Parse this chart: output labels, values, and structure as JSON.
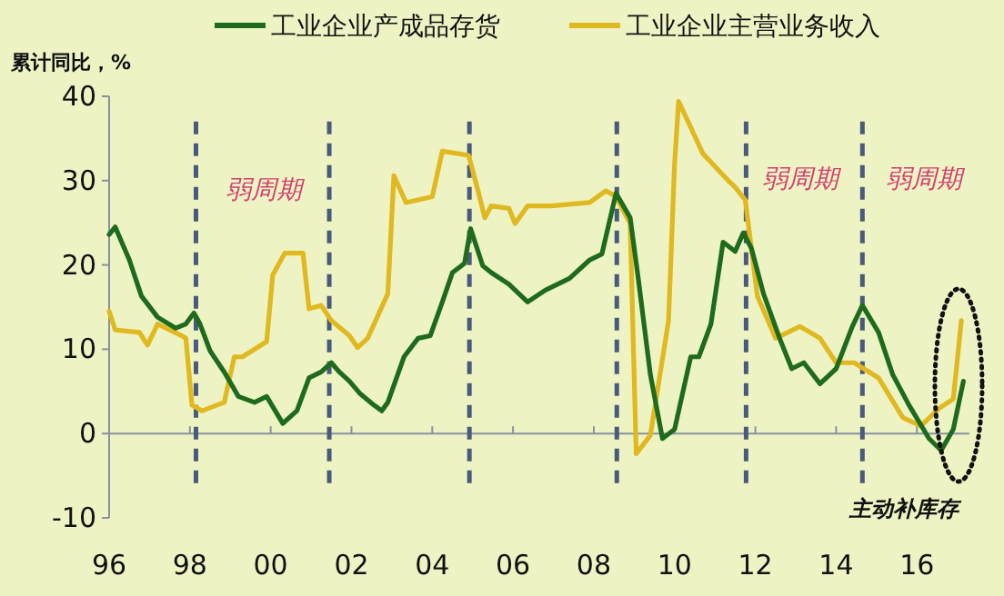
{
  "chart_data": {
    "type": "line",
    "ylabel": "累计同比，%",
    "legend": "top",
    "marker": "none",
    "line_style": "solid",
    "xlim": [
      1996,
      2017.3
    ],
    "ylim": [
      -10,
      40
    ],
    "yticks": [
      -10,
      0,
      10,
      20,
      30,
      40
    ],
    "xticks": [
      {
        "value": 1996,
        "label": "96"
      },
      {
        "value": 1998,
        "label": "98"
      },
      {
        "value": 2000,
        "label": "00"
      },
      {
        "value": 2002,
        "label": "02"
      },
      {
        "value": 2004,
        "label": "04"
      },
      {
        "value": 2006,
        "label": "06"
      },
      {
        "value": 2008,
        "label": "08"
      },
      {
        "value": 2010,
        "label": "10"
      },
      {
        "value": 2012,
        "label": "12"
      },
      {
        "value": 2014,
        "label": "14"
      },
      {
        "value": 2016,
        "label": "16"
      }
    ],
    "series": [
      {
        "name": "工业企业产成品存货",
        "color": "#1e6b1e",
        "x": [
          1996.0,
          1996.15,
          1996.5,
          1996.8,
          1997.2,
          1997.65,
          1997.9,
          1998.1,
          1998.25,
          1998.5,
          1998.85,
          1999.2,
          1999.6,
          1999.9,
          2000.3,
          2000.65,
          2000.95,
          2001.25,
          2001.5,
          2001.7,
          2001.95,
          2002.2,
          2002.55,
          2002.75,
          2002.9,
          2003.3,
          2003.65,
          2003.95,
          2004.25,
          2004.5,
          2004.8,
          2004.95,
          2005.25,
          2005.46,
          2005.9,
          2006.36,
          2006.8,
          2007.4,
          2007.9,
          2008.2,
          2008.55,
          2008.9,
          2009.1,
          2009.4,
          2009.7,
          2010.0,
          2010.4,
          2010.6,
          2010.9,
          2011.2,
          2011.5,
          2011.7,
          2011.9,
          2012.2,
          2012.6,
          2012.9,
          2013.2,
          2013.6,
          2014.0,
          2014.4,
          2014.65,
          2015.05,
          2015.4,
          2015.8,
          2016.3,
          2016.6,
          2016.9,
          2017.15
        ],
        "values": [
          23.6,
          24.5,
          20.6,
          16.3,
          13.8,
          12.5,
          13.0,
          14.3,
          13.0,
          9.8,
          7.3,
          4.4,
          3.7,
          4.4,
          1.2,
          2.7,
          6.6,
          7.3,
          8.4,
          7.3,
          6.2,
          4.8,
          3.4,
          2.7,
          3.7,
          9.1,
          11.3,
          11.6,
          15.6,
          19.1,
          20.2,
          24.3,
          19.9,
          19.1,
          17.7,
          15.6,
          17.0,
          18.4,
          20.6,
          21.3,
          28.5,
          25.6,
          18.4,
          7.0,
          -0.6,
          0.5,
          9.1,
          9.1,
          13.0,
          22.7,
          21.6,
          23.8,
          22.0,
          16.6,
          11.3,
          7.7,
          8.4,
          5.9,
          7.7,
          12.7,
          15.2,
          12.0,
          7.0,
          3.4,
          -0.6,
          -2.0,
          0.5,
          6.2
        ]
      },
      {
        "name": "工业企业主营业务收入",
        "color": "#e0b820",
        "x": [
          1996.0,
          1996.15,
          1996.75,
          1996.95,
          1997.2,
          1997.8,
          1997.9,
          1998.05,
          1998.3,
          1998.85,
          1999.1,
          1999.3,
          1999.9,
          2000.05,
          2000.35,
          2000.8,
          2000.95,
          2001.25,
          2001.5,
          2001.95,
          2002.15,
          2002.4,
          2002.9,
          2003.05,
          2003.35,
          2004.0,
          2004.25,
          2004.9,
          2005.15,
          2005.3,
          2005.46,
          2005.9,
          2006.05,
          2006.36,
          2006.95,
          2007.9,
          2008.3,
          2008.55,
          2008.9,
          2009.05,
          2009.4,
          2009.85,
          2010.0,
          2010.1,
          2010.7,
          2011.35,
          2011.5,
          2011.75,
          2012.05,
          2012.5,
          2013.1,
          2013.6,
          2014.0,
          2014.45,
          2015.05,
          2015.65,
          2016.1,
          2016.55,
          2016.9,
          2017.1
        ],
        "values": [
          14.5,
          12.3,
          12.0,
          10.5,
          13.0,
          11.6,
          11.3,
          3.4,
          2.7,
          3.7,
          9.1,
          9.1,
          10.9,
          18.8,
          21.4,
          21.4,
          14.8,
          15.2,
          13.4,
          11.6,
          10.2,
          11.3,
          16.6,
          30.6,
          27.4,
          28.1,
          33.5,
          33.0,
          28.5,
          25.6,
          27.0,
          26.7,
          24.9,
          27.0,
          27.0,
          27.4,
          28.8,
          28.1,
          24.9,
          -2.4,
          -0.2,
          13.4,
          32.0,
          39.4,
          33.2,
          29.9,
          29.2,
          27.7,
          16.3,
          11.3,
          12.7,
          11.3,
          8.4,
          8.4,
          6.6,
          1.9,
          0.9,
          3.0,
          4.1,
          13.4
        ]
      }
    ],
    "ref_lines": [
      {
        "axis": "x",
        "value": 1998.15,
        "color": "#4a5a7a",
        "line_style": "dashed"
      },
      {
        "axis": "x",
        "value": 2001.45,
        "color": "#4a5a7a",
        "line_style": "dashed"
      },
      {
        "axis": "x",
        "value": 2004.92,
        "color": "#4a5a7a",
        "line_style": "dashed"
      },
      {
        "axis": "x",
        "value": 2008.57,
        "color": "#4a5a7a",
        "line_style": "dashed"
      },
      {
        "axis": "x",
        "value": 2011.77,
        "color": "#4a5a7a",
        "line_style": "dashed"
      },
      {
        "axis": "x",
        "value": 2014.65,
        "color": "#4a5a7a",
        "line_style": "dashed"
      }
    ],
    "annotations": [
      "弱周期",
      "弱周期",
      "弱周期",
      "主动补库存"
    ]
  }
}
